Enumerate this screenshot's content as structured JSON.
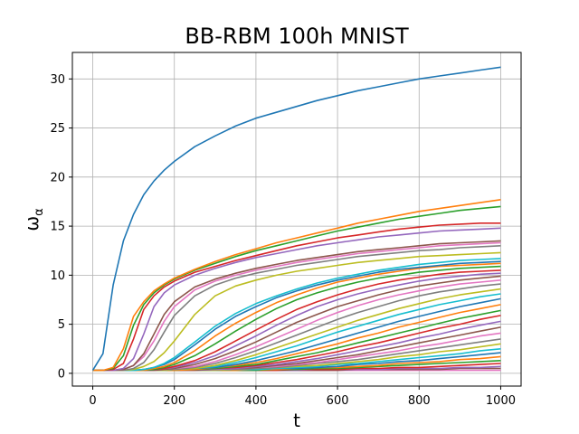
{
  "chart_data": {
    "type": "line",
    "title": "BB-RBM 100h MNIST",
    "xlabel": "t",
    "ylabel": "ω_α",
    "ylabel_main": "ω",
    "ylabel_sub": "α",
    "xlim": [
      -50,
      1050
    ],
    "ylim": [
      -1.3,
      32.7
    ],
    "xticks": [
      0,
      200,
      400,
      600,
      800,
      1000
    ],
    "yticks": [
      0,
      5,
      10,
      15,
      20,
      25,
      30
    ],
    "grid": true,
    "x": [
      0,
      25,
      50,
      75,
      100,
      125,
      150,
      175,
      200,
      250,
      300,
      350,
      400,
      450,
      500,
      550,
      600,
      650,
      700,
      750,
      800,
      850,
      900,
      950,
      1000
    ],
    "colors": [
      "#1f77b4",
      "#ff7f0e",
      "#2ca02c",
      "#d62728",
      "#9467bd",
      "#8c564b",
      "#e377c2",
      "#7f7f7f",
      "#bcbd22",
      "#17becf"
    ],
    "series": [
      {
        "values": [
          0.3,
          2.0,
          9.0,
          13.5,
          16.2,
          18.2,
          19.6,
          20.7,
          21.6,
          23.1,
          24.2,
          25.2,
          26.0,
          26.6,
          27.2,
          27.8,
          28.3,
          28.8,
          29.2,
          29.6,
          30.0,
          30.3,
          30.6,
          30.9,
          31.2
        ]
      },
      {
        "values": [
          0.3,
          0.3,
          0.6,
          2.5,
          5.8,
          7.3,
          8.4,
          9.1,
          9.7,
          10.6,
          11.4,
          12.1,
          12.7,
          13.3,
          13.8,
          14.3,
          14.8,
          15.3,
          15.7,
          16.1,
          16.5,
          16.8,
          17.1,
          17.4,
          17.7
        ]
      },
      {
        "values": [
          0.3,
          0.3,
          0.5,
          1.8,
          4.9,
          7.0,
          8.2,
          9.0,
          9.6,
          10.5,
          11.2,
          11.9,
          12.5,
          13.0,
          13.5,
          14.0,
          14.5,
          14.9,
          15.3,
          15.7,
          16.0,
          16.3,
          16.6,
          16.8,
          17.0
        ]
      },
      {
        "values": [
          0.3,
          0.3,
          0.4,
          1.0,
          3.5,
          6.5,
          7.9,
          8.8,
          9.4,
          10.3,
          10.9,
          11.5,
          12.0,
          12.5,
          13.0,
          13.4,
          13.8,
          14.1,
          14.4,
          14.7,
          14.9,
          15.1,
          15.2,
          15.3,
          15.3
        ]
      },
      {
        "values": [
          0.3,
          0.3,
          0.3,
          0.5,
          1.5,
          4.0,
          6.8,
          8.2,
          9.0,
          10.0,
          10.7,
          11.3,
          11.8,
          12.2,
          12.6,
          13.0,
          13.3,
          13.6,
          13.9,
          14.1,
          14.3,
          14.5,
          14.6,
          14.7,
          14.8
        ]
      },
      {
        "values": [
          0.3,
          0.3,
          0.3,
          0.4,
          0.8,
          2.0,
          4.0,
          6.0,
          7.3,
          8.8,
          9.6,
          10.2,
          10.7,
          11.1,
          11.5,
          11.8,
          12.1,
          12.4,
          12.6,
          12.8,
          13.0,
          13.2,
          13.3,
          13.4,
          13.5
        ]
      },
      {
        "values": [
          0.3,
          0.3,
          0.3,
          0.4,
          0.8,
          1.7,
          3.3,
          5.3,
          6.8,
          8.5,
          9.4,
          10.0,
          10.5,
          10.9,
          11.3,
          11.6,
          11.9,
          12.2,
          12.4,
          12.6,
          12.8,
          13.0,
          13.1,
          13.2,
          13.3
        ]
      },
      {
        "values": [
          0.3,
          0.3,
          0.3,
          0.3,
          0.5,
          1.1,
          2.4,
          4.2,
          5.9,
          7.9,
          9.0,
          9.7,
          10.2,
          10.6,
          11.0,
          11.3,
          11.6,
          11.9,
          12.1,
          12.3,
          12.5,
          12.6,
          12.8,
          12.9,
          13.0
        ]
      },
      {
        "values": [
          0.3,
          0.3,
          0.3,
          0.3,
          0.4,
          0.7,
          1.2,
          2.1,
          3.3,
          6.0,
          7.9,
          8.9,
          9.5,
          10.0,
          10.4,
          10.7,
          11.0,
          11.3,
          11.5,
          11.7,
          11.9,
          12.0,
          12.1,
          12.2,
          12.3
        ]
      },
      {
        "values": [
          0.3,
          0.3,
          0.3,
          0.3,
          0.3,
          0.4,
          0.6,
          1.0,
          1.6,
          3.2,
          4.8,
          6.1,
          7.1,
          7.9,
          8.6,
          9.2,
          9.7,
          10.1,
          10.5,
          10.8,
          11.1,
          11.3,
          11.5,
          11.6,
          11.7
        ]
      },
      {
        "values": [
          0.3,
          0.3,
          0.3,
          0.3,
          0.3,
          0.4,
          0.6,
          0.9,
          1.4,
          2.9,
          4.5,
          5.8,
          6.8,
          7.7,
          8.4,
          9.0,
          9.5,
          9.9,
          10.3,
          10.6,
          10.8,
          11.0,
          11.2,
          11.3,
          11.4
        ]
      },
      {
        "values": [
          0.3,
          0.3,
          0.3,
          0.3,
          0.3,
          0.3,
          0.5,
          0.7,
          1.1,
          2.3,
          3.8,
          5.1,
          6.2,
          7.2,
          8.0,
          8.7,
          9.3,
          9.7,
          10.1,
          10.4,
          10.7,
          10.9,
          11.0,
          11.1,
          11.2
        ]
      },
      {
        "values": [
          0.3,
          0.3,
          0.3,
          0.3,
          0.3,
          0.3,
          0.4,
          0.6,
          0.9,
          1.8,
          3.0,
          4.3,
          5.5,
          6.6,
          7.5,
          8.2,
          8.8,
          9.3,
          9.7,
          10.0,
          10.3,
          10.5,
          10.7,
          10.8,
          10.9
        ]
      },
      {
        "values": [
          0.3,
          0.3,
          0.3,
          0.3,
          0.3,
          0.3,
          0.4,
          0.5,
          0.7,
          1.3,
          2.2,
          3.3,
          4.4,
          5.5,
          6.5,
          7.3,
          8.0,
          8.6,
          9.1,
          9.5,
          9.8,
          10.1,
          10.3,
          10.4,
          10.5
        ]
      },
      {
        "values": [
          0.3,
          0.3,
          0.3,
          0.3,
          0.3,
          0.3,
          0.4,
          0.5,
          0.6,
          1.1,
          1.8,
          2.8,
          3.8,
          4.9,
          5.9,
          6.8,
          7.5,
          8.1,
          8.6,
          9.0,
          9.4,
          9.7,
          9.9,
          10.1,
          10.2
        ]
      },
      {
        "values": [
          0.3,
          0.3,
          0.3,
          0.3,
          0.3,
          0.3,
          0.3,
          0.4,
          0.5,
          0.9,
          1.5,
          2.3,
          3.2,
          4.2,
          5.2,
          6.0,
          6.8,
          7.4,
          8.0,
          8.5,
          8.9,
          9.2,
          9.5,
          9.7,
          9.9
        ]
      },
      {
        "values": [
          0.3,
          0.3,
          0.3,
          0.3,
          0.3,
          0.3,
          0.3,
          0.4,
          0.5,
          0.7,
          1.2,
          1.9,
          2.7,
          3.6,
          4.5,
          5.4,
          6.2,
          6.9,
          7.5,
          8.0,
          8.4,
          8.8,
          9.1,
          9.3,
          9.5
        ]
      },
      {
        "values": [
          0.3,
          0.3,
          0.3,
          0.3,
          0.3,
          0.3,
          0.3,
          0.4,
          0.4,
          0.6,
          1.0,
          1.6,
          2.3,
          3.1,
          3.9,
          4.7,
          5.5,
          6.2,
          6.8,
          7.4,
          7.9,
          8.3,
          8.6,
          8.9,
          9.1
        ]
      },
      {
        "values": [
          0.3,
          0.3,
          0.3,
          0.3,
          0.3,
          0.3,
          0.3,
          0.3,
          0.4,
          0.5,
          0.8,
          1.3,
          1.9,
          2.6,
          3.3,
          4.0,
          4.7,
          5.4,
          6.0,
          6.6,
          7.1,
          7.6,
          8.0,
          8.3,
          8.6
        ]
      },
      {
        "values": [
          0.3,
          0.3,
          0.3,
          0.3,
          0.3,
          0.3,
          0.3,
          0.3,
          0.4,
          0.5,
          0.7,
          1.1,
          1.6,
          2.2,
          2.8,
          3.5,
          4.2,
          4.8,
          5.4,
          6.0,
          6.5,
          7.0,
          7.4,
          7.8,
          8.1
        ]
      },
      {
        "values": [
          0.3,
          0.3,
          0.3,
          0.3,
          0.3,
          0.3,
          0.3,
          0.3,
          0.4,
          0.5,
          0.6,
          0.9,
          1.3,
          1.8,
          2.3,
          2.9,
          3.5,
          4.1,
          4.7,
          5.3,
          5.8,
          6.3,
          6.8,
          7.2,
          7.6
        ]
      },
      {
        "values": [
          0.3,
          0.3,
          0.3,
          0.3,
          0.3,
          0.3,
          0.3,
          0.3,
          0.3,
          0.4,
          0.6,
          0.8,
          1.1,
          1.5,
          2.0,
          2.5,
          3.0,
          3.6,
          4.1,
          4.7,
          5.2,
          5.7,
          6.2,
          6.6,
          7.0
        ]
      },
      {
        "values": [
          0.3,
          0.3,
          0.3,
          0.3,
          0.3,
          0.3,
          0.3,
          0.3,
          0.3,
          0.4,
          0.5,
          0.7,
          0.9,
          1.3,
          1.7,
          2.1,
          2.6,
          3.1,
          3.6,
          4.1,
          4.6,
          5.1,
          5.6,
          6.0,
          6.4
        ]
      },
      {
        "values": [
          0.3,
          0.3,
          0.3,
          0.3,
          0.3,
          0.3,
          0.3,
          0.3,
          0.3,
          0.4,
          0.5,
          0.6,
          0.8,
          1.1,
          1.4,
          1.8,
          2.2,
          2.7,
          3.1,
          3.6,
          4.1,
          4.6,
          5.0,
          5.5,
          5.9
        ]
      },
      {
        "values": [
          0.3,
          0.3,
          0.3,
          0.3,
          0.3,
          0.3,
          0.3,
          0.3,
          0.3,
          0.4,
          0.4,
          0.5,
          0.7,
          0.9,
          1.2,
          1.5,
          1.9,
          2.3,
          2.7,
          3.1,
          3.6,
          4.0,
          4.5,
          4.9,
          5.3
        ]
      },
      {
        "values": [
          0.3,
          0.3,
          0.3,
          0.3,
          0.3,
          0.3,
          0.3,
          0.3,
          0.3,
          0.3,
          0.4,
          0.5,
          0.6,
          0.8,
          1.0,
          1.3,
          1.6,
          1.9,
          2.3,
          2.7,
          3.1,
          3.5,
          3.9,
          4.3,
          4.7
        ]
      },
      {
        "values": [
          0.3,
          0.3,
          0.3,
          0.3,
          0.3,
          0.3,
          0.3,
          0.3,
          0.3,
          0.3,
          0.4,
          0.5,
          0.6,
          0.7,
          0.9,
          1.1,
          1.4,
          1.7,
          2.0,
          2.3,
          2.7,
          3.0,
          3.4,
          3.8,
          4.1
        ]
      },
      {
        "values": [
          0.3,
          0.3,
          0.3,
          0.3,
          0.3,
          0.3,
          0.3,
          0.3,
          0.3,
          0.3,
          0.4,
          0.4,
          0.5,
          0.6,
          0.8,
          1.0,
          1.2,
          1.4,
          1.7,
          2.0,
          2.3,
          2.6,
          2.9,
          3.2,
          3.5
        ]
      },
      {
        "values": [
          0.3,
          0.3,
          0.3,
          0.3,
          0.3,
          0.3,
          0.3,
          0.3,
          0.3,
          0.3,
          0.3,
          0.4,
          0.5,
          0.6,
          0.7,
          0.8,
          1.0,
          1.2,
          1.4,
          1.7,
          1.9,
          2.2,
          2.4,
          2.7,
          3.0
        ]
      },
      {
        "values": [
          0.3,
          0.3,
          0.3,
          0.3,
          0.3,
          0.3,
          0.3,
          0.3,
          0.3,
          0.3,
          0.3,
          0.4,
          0.4,
          0.5,
          0.6,
          0.7,
          0.9,
          1.0,
          1.2,
          1.4,
          1.6,
          1.8,
          2.0,
          2.3,
          2.5
        ]
      },
      {
        "values": [
          0.3,
          0.3,
          0.3,
          0.3,
          0.3,
          0.3,
          0.3,
          0.3,
          0.3,
          0.3,
          0.3,
          0.4,
          0.4,
          0.5,
          0.5,
          0.6,
          0.7,
          0.9,
          1.0,
          1.2,
          1.3,
          1.5,
          1.7,
          1.9,
          2.1
        ]
      },
      {
        "values": [
          0.3,
          0.3,
          0.3,
          0.3,
          0.3,
          0.3,
          0.3,
          0.3,
          0.3,
          0.3,
          0.3,
          0.3,
          0.4,
          0.4,
          0.5,
          0.6,
          0.6,
          0.7,
          0.8,
          1.0,
          1.1,
          1.2,
          1.4,
          1.5,
          1.7
        ]
      },
      {
        "values": [
          0.3,
          0.3,
          0.3,
          0.3,
          0.3,
          0.3,
          0.3,
          0.3,
          0.3,
          0.3,
          0.3,
          0.3,
          0.3,
          0.4,
          0.4,
          0.5,
          0.5,
          0.6,
          0.7,
          0.8,
          0.9,
          1.0,
          1.1,
          1.2,
          1.3
        ]
      },
      {
        "values": [
          0.3,
          0.3,
          0.3,
          0.3,
          0.3,
          0.3,
          0.3,
          0.3,
          0.3,
          0.3,
          0.3,
          0.3,
          0.3,
          0.3,
          0.4,
          0.4,
          0.4,
          0.5,
          0.5,
          0.6,
          0.6,
          0.7,
          0.8,
          0.9,
          1.0
        ]
      },
      {
        "values": [
          0.3,
          0.3,
          0.3,
          0.3,
          0.3,
          0.3,
          0.3,
          0.3,
          0.3,
          0.3,
          0.3,
          0.3,
          0.3,
          0.3,
          0.3,
          0.4,
          0.4,
          0.4,
          0.4,
          0.5,
          0.5,
          0.5,
          0.6,
          0.6,
          0.7
        ]
      },
      {
        "values": [
          0.3,
          0.3,
          0.3,
          0.3,
          0.3,
          0.3,
          0.3,
          0.3,
          0.3,
          0.3,
          0.3,
          0.3,
          0.3,
          0.3,
          0.3,
          0.3,
          0.3,
          0.4,
          0.4,
          0.4,
          0.4,
          0.4,
          0.5,
          0.5,
          0.5
        ]
      },
      {
        "values": [
          0.3,
          0.3,
          0.3,
          0.3,
          0.3,
          0.3,
          0.3,
          0.3,
          0.3,
          0.3,
          0.3,
          0.3,
          0.3,
          0.3,
          0.3,
          0.3,
          0.3,
          0.3,
          0.3,
          0.3,
          0.3,
          0.3,
          0.3,
          0.3,
          0.3
        ]
      }
    ]
  }
}
